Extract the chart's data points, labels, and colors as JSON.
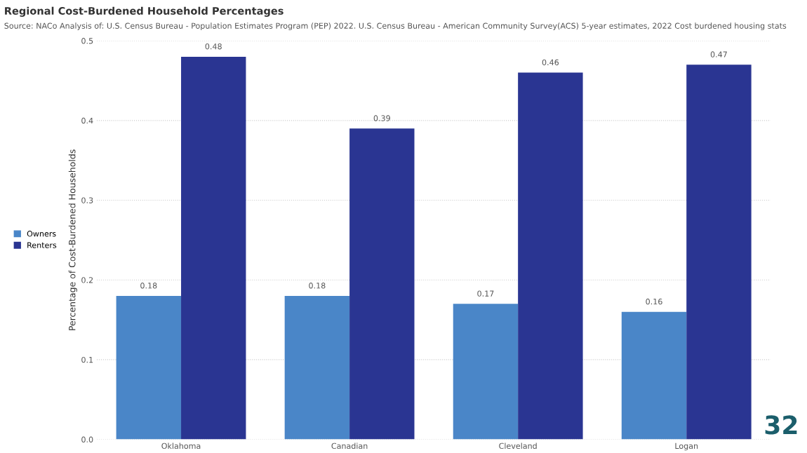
{
  "chart_data": {
    "type": "bar",
    "title": "Regional Cost-Burdened Household Percentages",
    "subtitle": "Source: NACo Analysis of: U.S. Census Bureau - Population Estimates Program (PEP) 2022. U.S. Census Bureau - American Community Survey(ACS) 5-year estimates, 2022 Cost burdened housing stats",
    "ylabel": "Percentage of Cost-Burdened Households",
    "categories": [
      "Oklahoma",
      "Canadian",
      "Cleveland",
      "Logan"
    ],
    "series": [
      {
        "name": "Owners",
        "color": "#4a86c8",
        "values": [
          0.18,
          0.18,
          0.17,
          0.16
        ]
      },
      {
        "name": "Renters",
        "color": "#2a3592",
        "values": [
          0.48,
          0.39,
          0.46,
          0.47
        ]
      }
    ],
    "ylim": [
      0,
      0.5
    ],
    "yticks": [
      {
        "value": 0,
        "label": "0.0"
      },
      0.1,
      0.2,
      0.3,
      0.4,
      0.5
    ],
    "grid": "y",
    "legend": "left",
    "data_labels": true,
    "annotations": [
      "32"
    ]
  }
}
